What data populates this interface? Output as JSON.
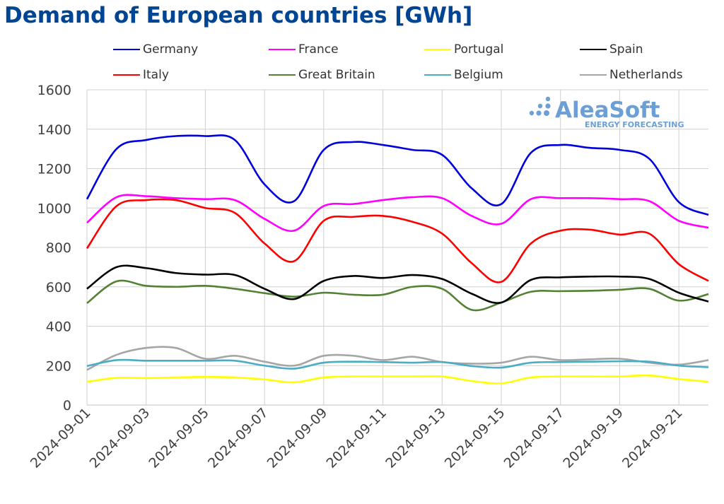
{
  "title": "Demand of European countries [GWh]",
  "logo": {
    "name": "AleaSoft",
    "tagline": "ENERGY FORECASTING",
    "color": "#4a86c8"
  },
  "chart_data": {
    "type": "line",
    "title": "Demand of European countries [GWh]",
    "xlabel": "",
    "ylabel": "",
    "ylim": [
      0,
      1600
    ],
    "yticks": [
      0,
      200,
      400,
      600,
      800,
      1000,
      1200,
      1400,
      1600
    ],
    "grid": true,
    "legend": "top",
    "x": [
      "2024-09-01",
      "2024-09-02",
      "2024-09-03",
      "2024-09-04",
      "2024-09-05",
      "2024-09-06",
      "2024-09-07",
      "2024-09-08",
      "2024-09-09",
      "2024-09-10",
      "2024-09-11",
      "2024-09-12",
      "2024-09-13",
      "2024-09-14",
      "2024-09-15",
      "2024-09-16",
      "2024-09-17",
      "2024-09-18",
      "2024-09-19",
      "2024-09-20",
      "2024-09-21",
      "2024-09-22"
    ],
    "xtick_labels": [
      "2024-09-01",
      "2024-09-03",
      "2024-09-05",
      "2024-09-07",
      "2024-09-09",
      "2024-09-11",
      "2024-09-13",
      "2024-09-15",
      "2024-09-17",
      "2024-09-19",
      "2024-09-21"
    ],
    "series": [
      {
        "name": "Germany",
        "color": "#0000dd",
        "values": [
          1045,
          1300,
          1345,
          1365,
          1365,
          1345,
          1120,
          1035,
          1295,
          1335,
          1320,
          1295,
          1270,
          1100,
          1020,
          1280,
          1320,
          1305,
          1295,
          1250,
          1030,
          965
        ]
      },
      {
        "name": "France",
        "color": "#ff00ff",
        "values": [
          925,
          1055,
          1060,
          1050,
          1045,
          1040,
          945,
          885,
          1010,
          1020,
          1040,
          1055,
          1050,
          960,
          920,
          1045,
          1050,
          1050,
          1045,
          1035,
          935,
          900
        ]
      },
      {
        "name": "Portugal",
        "color": "#ffff00",
        "values": [
          118,
          138,
          137,
          140,
          143,
          140,
          130,
          115,
          140,
          145,
          145,
          145,
          145,
          122,
          110,
          140,
          145,
          145,
          145,
          150,
          132,
          118
        ]
      },
      {
        "name": "Spain",
        "color": "#000000",
        "values": [
          590,
          700,
          695,
          670,
          662,
          660,
          590,
          538,
          630,
          655,
          645,
          660,
          640,
          565,
          520,
          635,
          648,
          652,
          652,
          640,
          570,
          525
        ]
      },
      {
        "name": "Italy",
        "color": "#ff0000",
        "values": [
          795,
          1010,
          1040,
          1040,
          1000,
          975,
          820,
          730,
          935,
          955,
          960,
          930,
          870,
          720,
          625,
          820,
          885,
          890,
          865,
          870,
          715,
          630
        ]
      },
      {
        "name": "Great Britain",
        "color": "#548235",
        "values": [
          517,
          628,
          605,
          600,
          605,
          590,
          568,
          550,
          570,
          560,
          560,
          600,
          590,
          483,
          520,
          575,
          578,
          580,
          585,
          590,
          530,
          563
        ]
      },
      {
        "name": "Belgium",
        "color": "#4bacc6",
        "values": [
          198,
          228,
          225,
          225,
          225,
          225,
          200,
          185,
          215,
          220,
          218,
          215,
          218,
          198,
          190,
          215,
          218,
          220,
          222,
          220,
          200,
          192
        ]
      },
      {
        "name": "Netherlands",
        "color": "#a6a6a6",
        "values": [
          178,
          255,
          290,
          290,
          235,
          250,
          220,
          200,
          250,
          250,
          228,
          245,
          218,
          210,
          215,
          245,
          228,
          232,
          235,
          215,
          205,
          228
        ]
      }
    ]
  }
}
